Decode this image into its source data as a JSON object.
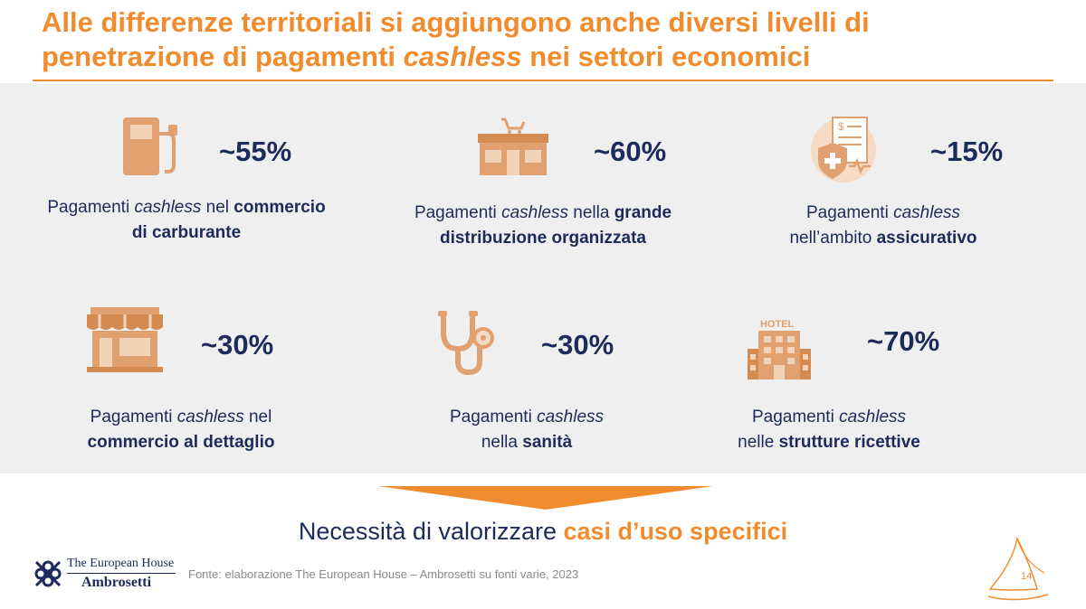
{
  "title": {
    "line1": "Alle differenze territoriali si aggiungono anche diversi livelli di",
    "line2_prefix": "penetrazione di pagamenti ",
    "line2_italic": "cashless",
    "line2_suffix": " nei settori economici"
  },
  "cards": [
    {
      "icon": "fuel-pump-icon",
      "percent": "~55%",
      "cap_pre": "Pagamenti ",
      "cap_it": "cashless",
      "cap_mid": " nel ",
      "cap_bold1": "commercio",
      "cap_bold2": "di carburante"
    },
    {
      "icon": "supermarket-icon",
      "percent": "~60%",
      "cap_pre": "Pagamenti ",
      "cap_it": "cashless",
      "cap_mid": " nella ",
      "cap_bold1": "grande",
      "cap_bold2": "distribuzione organizzata"
    },
    {
      "icon": "insurance-icon",
      "percent": "~15%",
      "cap_pre": "Pagamenti ",
      "cap_it": "cashless",
      "cap_line2_pre": "nell’ambito ",
      "cap_bold2": "assicurativo"
    },
    {
      "icon": "shop-icon",
      "percent": "~30%",
      "cap_pre": "Pagamenti ",
      "cap_it": "cashless",
      "cap_mid": " nel",
      "cap_bold2": "commercio al dettaglio"
    },
    {
      "icon": "stethoscope-icon",
      "percent": "~30%",
      "cap_pre": "Pagamenti ",
      "cap_it": "cashless",
      "cap_line2_pre": "nella ",
      "cap_bold2": "sanità"
    },
    {
      "icon": "hotel-icon",
      "percent": "~70%",
      "hotel_sign": "HOTEL",
      "cap_pre": "Pagamenti ",
      "cap_it": "cashless",
      "cap_line2_pre": "nelle ",
      "cap_bold2": "strutture ricettive"
    }
  ],
  "conclusion": {
    "prefix": "Necessità di valorizzare ",
    "highlight": "casi d’uso specifici"
  },
  "source": "Fonte: elaborazione The European House – Ambrosetti su fonti varie, 2023",
  "logo": {
    "line1": "The European House",
    "line2": "Ambrosetti"
  },
  "page_number": "14",
  "colors": {
    "accent": "#f08c2e",
    "text": "#1b2b5b",
    "icon": "#e0a06f",
    "panel": "#efefef"
  }
}
